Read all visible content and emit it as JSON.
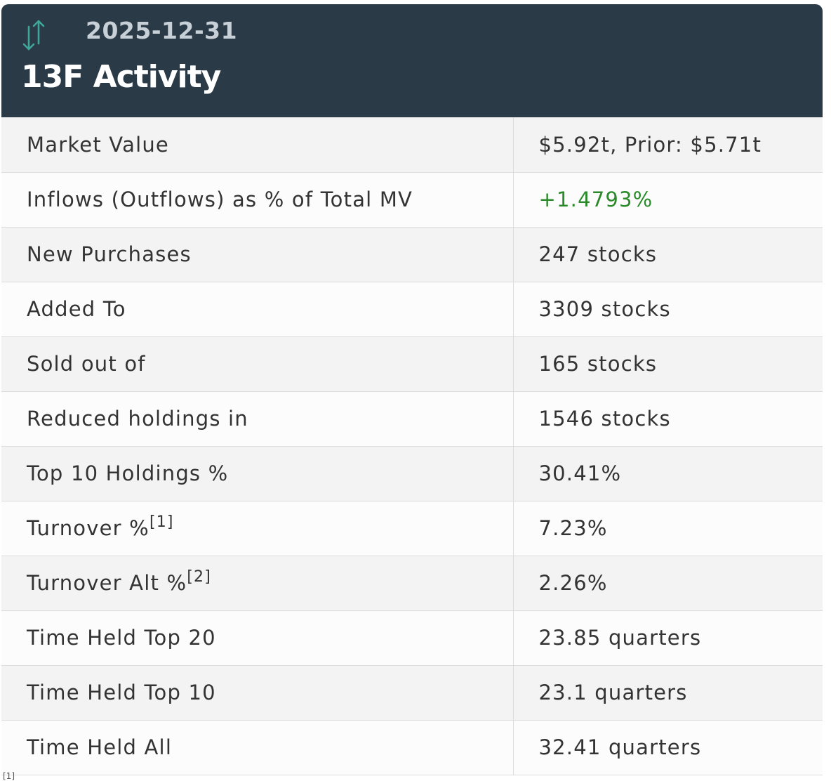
{
  "header": {
    "date": "2025-12-31",
    "title": "13F Activity",
    "icon": "up-down-arrows-icon",
    "colors": {
      "background": "#2b3a47",
      "icon": "#3fa79a"
    }
  },
  "rows": [
    {
      "label": "Market Value",
      "value": "$5.92t, Prior: $5.71t"
    },
    {
      "label": "Inflows (Outflows) as % of Total MV",
      "value": "+1.4793%",
      "value_color": "#2a8a2a"
    },
    {
      "label": "New Purchases",
      "value": "247 stocks"
    },
    {
      "label": "Added To",
      "value": "3309 stocks"
    },
    {
      "label": "Sold out of",
      "value": "165 stocks"
    },
    {
      "label": "Reduced holdings in",
      "value": "1546 stocks"
    },
    {
      "label": "Top 10 Holdings %",
      "value": "30.41%"
    },
    {
      "label": "Turnover %",
      "footnote": "[1]",
      "value": "7.23%"
    },
    {
      "label": "Turnover Alt %",
      "footnote": "[2]",
      "value": "2.26%"
    },
    {
      "label": "Time Held Top 20",
      "value": "23.85 quarters"
    },
    {
      "label": "Time Held Top 10",
      "value": "23.1 quarters"
    },
    {
      "label": "Time Held All",
      "value": "32.41 quarters"
    }
  ],
  "footnote_peek": "[1]"
}
